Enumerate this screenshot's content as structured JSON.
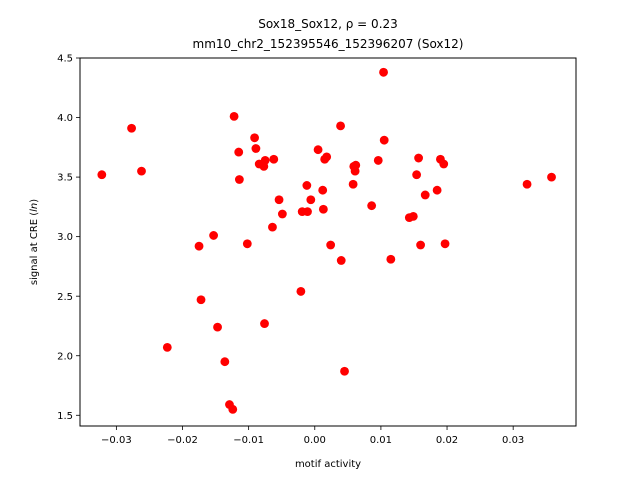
{
  "chart_data": {
    "type": "scatter",
    "title_line1": "Sox18_Sox12, ρ = 0.23",
    "title_line2": "mm10_chr2_152395546_152396207 (Sox12)",
    "xlabel": "motif activity",
    "ylabel": "signal at CRE (ln)",
    "xlim": [
      -0.0355,
      0.0395
    ],
    "ylim": [
      1.41,
      4.5
    ],
    "xticks": [
      -0.03,
      -0.02,
      -0.01,
      0.0,
      0.01,
      0.02,
      0.03
    ],
    "xtick_labels": [
      "−0.03",
      "−0.02",
      "−0.01",
      "0.00",
      "0.01",
      "0.02",
      "0.03"
    ],
    "yticks": [
      1.5,
      2.0,
      2.5,
      3.0,
      3.5,
      4.0,
      4.5
    ],
    "ytick_labels": [
      "1.5",
      "2.0",
      "2.5",
      "3.0",
      "3.5",
      "4.0",
      "4.5"
    ],
    "grid": false,
    "marker_color": "#ff0000",
    "points": [
      {
        "x": -0.0322,
        "y": 3.52
      },
      {
        "x": -0.0277,
        "y": 3.91
      },
      {
        "x": -0.0262,
        "y": 3.55
      },
      {
        "x": -0.0223,
        "y": 2.07
      },
      {
        "x": -0.0175,
        "y": 2.92
      },
      {
        "x": -0.0172,
        "y": 2.47
      },
      {
        "x": -0.0153,
        "y": 3.01
      },
      {
        "x": -0.0147,
        "y": 2.24
      },
      {
        "x": -0.0136,
        "y": 1.95
      },
      {
        "x": -0.0129,
        "y": 1.59
      },
      {
        "x": -0.0124,
        "y": 1.55
      },
      {
        "x": -0.0122,
        "y": 4.01
      },
      {
        "x": -0.0115,
        "y": 3.71
      },
      {
        "x": -0.0114,
        "y": 3.48
      },
      {
        "x": -0.0102,
        "y": 2.94
      },
      {
        "x": -0.0091,
        "y": 3.83
      },
      {
        "x": -0.0089,
        "y": 3.74
      },
      {
        "x": -0.0084,
        "y": 3.61
      },
      {
        "x": -0.0077,
        "y": 3.59
      },
      {
        "x": -0.0076,
        "y": 2.27
      },
      {
        "x": -0.0075,
        "y": 3.64
      },
      {
        "x": -0.0064,
        "y": 3.08
      },
      {
        "x": -0.0062,
        "y": 3.65
      },
      {
        "x": -0.0054,
        "y": 3.31
      },
      {
        "x": -0.0049,
        "y": 3.19
      },
      {
        "x": -0.0021,
        "y": 2.54
      },
      {
        "x": -0.0019,
        "y": 3.21
      },
      {
        "x": -0.0012,
        "y": 3.43
      },
      {
        "x": -0.0011,
        "y": 3.21
      },
      {
        "x": -0.0006,
        "y": 3.31
      },
      {
        "x": 0.0005,
        "y": 3.73
      },
      {
        "x": 0.0012,
        "y": 3.39
      },
      {
        "x": 0.0013,
        "y": 3.23
      },
      {
        "x": 0.0015,
        "y": 3.65
      },
      {
        "x": 0.0018,
        "y": 3.67
      },
      {
        "x": 0.0024,
        "y": 2.93
      },
      {
        "x": 0.0039,
        "y": 3.93
      },
      {
        "x": 0.004,
        "y": 2.8
      },
      {
        "x": 0.0045,
        "y": 1.87
      },
      {
        "x": 0.0058,
        "y": 3.44
      },
      {
        "x": 0.0059,
        "y": 3.59
      },
      {
        "x": 0.0061,
        "y": 3.55
      },
      {
        "x": 0.0062,
        "y": 3.6
      },
      {
        "x": 0.0086,
        "y": 3.26
      },
      {
        "x": 0.0096,
        "y": 3.64
      },
      {
        "x": 0.0104,
        "y": 4.38
      },
      {
        "x": 0.0105,
        "y": 3.81
      },
      {
        "x": 0.0115,
        "y": 2.81
      },
      {
        "x": 0.0143,
        "y": 3.16
      },
      {
        "x": 0.0149,
        "y": 3.17
      },
      {
        "x": 0.0154,
        "y": 3.52
      },
      {
        "x": 0.0157,
        "y": 3.66
      },
      {
        "x": 0.016,
        "y": 2.93
      },
      {
        "x": 0.0167,
        "y": 3.35
      },
      {
        "x": 0.0185,
        "y": 3.39
      },
      {
        "x": 0.019,
        "y": 3.65
      },
      {
        "x": 0.0195,
        "y": 3.61
      },
      {
        "x": 0.0197,
        "y": 2.94
      },
      {
        "x": 0.0321,
        "y": 3.44
      },
      {
        "x": 0.0358,
        "y": 3.5
      }
    ]
  }
}
